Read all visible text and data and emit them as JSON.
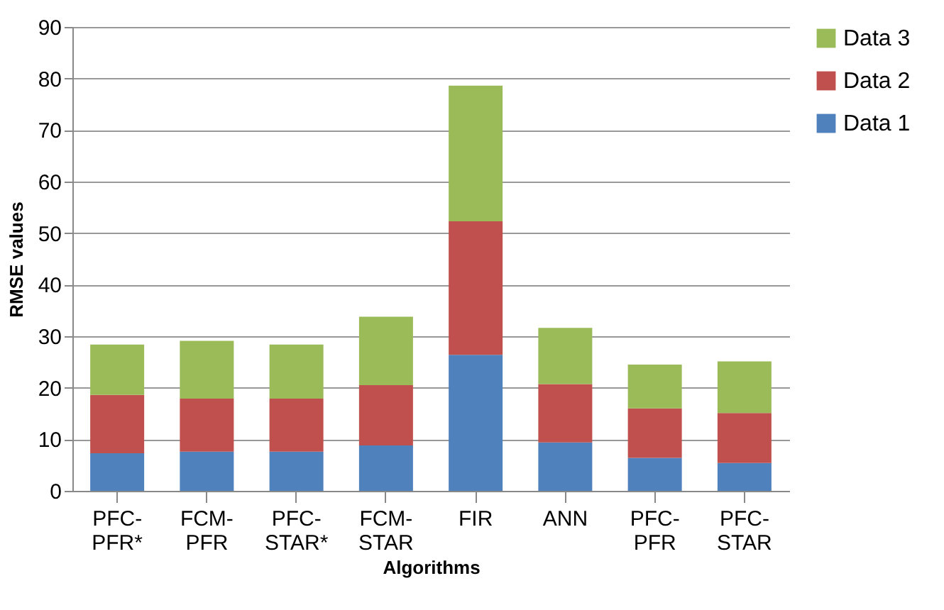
{
  "chart_data": {
    "type": "bar",
    "stacked": true,
    "xlabel": "Algorithms",
    "ylabel": "RMSE values",
    "categories": [
      "PFC-PFR*",
      "FCM-PFR",
      "PFC-STAR*",
      "FCM-STAR",
      "FIR",
      "ANN",
      "PFC-PFR",
      "PFC-STAR"
    ],
    "series": [
      {
        "name": "Data 1",
        "color": "#4f81bd",
        "values": [
          7.3,
          7.6,
          7.6,
          8.8,
          26.4,
          9.4,
          6.4,
          5.4
        ]
      },
      {
        "name": "Data 2",
        "color": "#c0504d",
        "values": [
          11.3,
          10.3,
          10.3,
          11.7,
          25.9,
          11.3,
          9.6,
          9.7
        ]
      },
      {
        "name": "Data 3",
        "color": "#9bbb59",
        "values": [
          9.8,
          11.2,
          10.5,
          13.3,
          26.3,
          10.9,
          8.5,
          10.0
        ]
      }
    ],
    "ylim": [
      0,
      90
    ],
    "yticks": [
      0,
      10,
      20,
      30,
      40,
      50,
      60,
      70,
      80,
      90
    ],
    "grid": "y",
    "legend": "right"
  }
}
